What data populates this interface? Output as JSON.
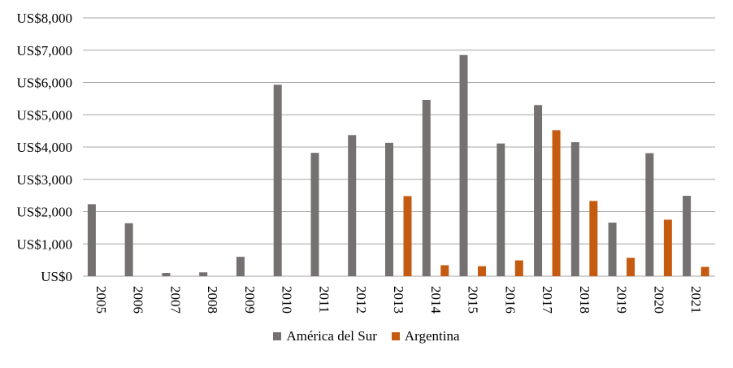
{
  "chart_data": {
    "type": "bar",
    "categories": [
      "2005",
      "2006",
      "2007",
      "2008",
      "2009",
      "2010",
      "2011",
      "2012",
      "2013",
      "2014",
      "2015",
      "2016",
      "2017",
      "2018",
      "2019",
      "2020",
      "2021"
    ],
    "series": [
      {
        "name": "América del Sur",
        "color": "#767171",
        "values": [
          2230,
          1640,
          100,
          120,
          600,
          5930,
          3820,
          4370,
          4130,
          5460,
          6850,
          4110,
          5300,
          4150,
          1660,
          3810,
          2490
        ]
      },
      {
        "name": "Argentina",
        "color": "#C55A11",
        "values": [
          0,
          0,
          0,
          0,
          0,
          0,
          0,
          0,
          2480,
          340,
          310,
          490,
          4520,
          2330,
          570,
          1750,
          290
        ]
      }
    ],
    "yticks": [
      "US$0",
      "US$1,000",
      "US$2,000",
      "US$3,000",
      "US$4,000",
      "US$5,000",
      "US$6,000",
      "US$7,000",
      "US$8,000"
    ],
    "ylim": [
      0,
      8000
    ],
    "grid": true,
    "legend_position": "bottom",
    "title": "",
    "xlabel": "",
    "ylabel": ""
  }
}
